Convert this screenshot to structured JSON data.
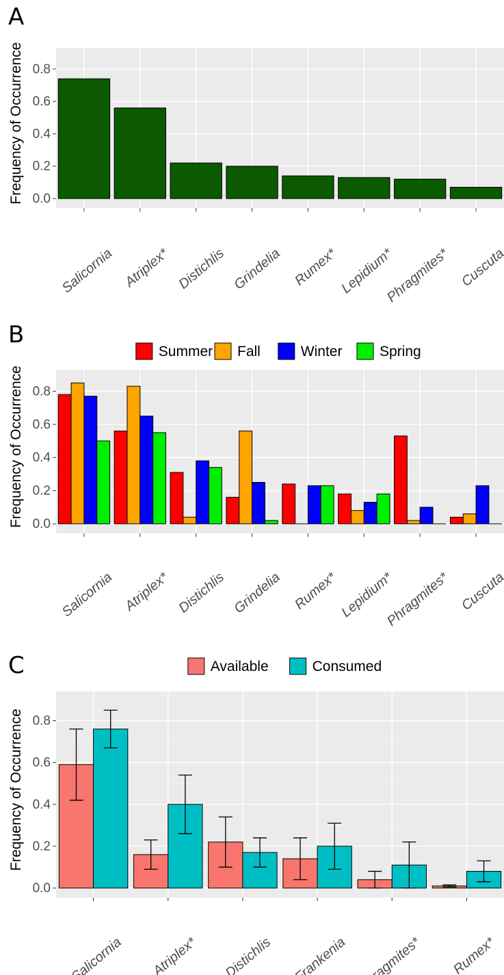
{
  "chart_data": [
    {
      "panel": "A",
      "type": "bar",
      "ylabel": "Frequency of Occurrence",
      "xlabel": "",
      "categories": [
        "Salicornia",
        "Atriplex*",
        "Distichlis",
        "Grindelia",
        "Rumex*",
        "Lepidium*",
        "Phragmites*",
        "Cuscuta"
      ],
      "series": [
        {
          "values": [
            0.74,
            0.56,
            0.22,
            0.2,
            0.14,
            0.13,
            0.12,
            0.07
          ],
          "color": "#0b5a00"
        }
      ],
      "yticks": [
        "0.0",
        "0.2",
        "0.4",
        "0.6",
        "0.8"
      ],
      "ylim": [
        0,
        0.88
      ],
      "grid": true,
      "legend": []
    },
    {
      "panel": "B",
      "type": "bar",
      "ylabel": "Frequency of Occurrence",
      "xlabel": "",
      "categories": [
        "Salicornia",
        "Atriplex*",
        "Distichlis",
        "Grindelia",
        "Rumex*",
        "Lepidium*",
        "Phragmites*",
        "Cuscuta"
      ],
      "series": [
        {
          "name": "Summer",
          "color": "#ff0000",
          "values": [
            0.78,
            0.56,
            0.31,
            0.16,
            0.24,
            0.18,
            0.53,
            0.04
          ]
        },
        {
          "name": "Fall",
          "color": "#ffa500",
          "values": [
            0.85,
            0.83,
            0.04,
            0.56,
            0.0,
            0.08,
            0.02,
            0.06
          ]
        },
        {
          "name": "Winter",
          "color": "#0000ff",
          "values": [
            0.77,
            0.65,
            0.38,
            0.25,
            0.23,
            0.13,
            0.1,
            0.23
          ]
        },
        {
          "name": "Spring",
          "color": "#00ee00",
          "values": [
            0.5,
            0.55,
            0.34,
            0.02,
            0.23,
            0.18,
            0.0,
            0.0
          ]
        }
      ],
      "yticks": [
        "0.0",
        "0.2",
        "0.4",
        "0.6",
        "0.8"
      ],
      "ylim": [
        0,
        0.88
      ],
      "grid": true,
      "legend": "top"
    },
    {
      "panel": "C",
      "type": "bar",
      "ylabel": "Frequency of Occurrence",
      "xlabel": "",
      "categories": [
        "Salicornia",
        "Atriplex*",
        "Distichlis",
        "Frankenia",
        "Phragmites*",
        "Rumex*"
      ],
      "series": [
        {
          "name": "Available",
          "color": "#f8766d",
          "values": [
            0.59,
            0.16,
            0.22,
            0.14,
            0.04,
            0.01
          ],
          "err_low": [
            0.42,
            0.09,
            0.1,
            0.04,
            0.0,
            0.005
          ],
          "err_high": [
            0.76,
            0.23,
            0.34,
            0.24,
            0.08,
            0.015
          ]
        },
        {
          "name": "Consumed",
          "color": "#00bfc4",
          "values": [
            0.76,
            0.4,
            0.17,
            0.2,
            0.11,
            0.08
          ],
          "err_low": [
            0.67,
            0.26,
            0.1,
            0.09,
            0.0,
            0.03
          ],
          "err_high": [
            0.85,
            0.54,
            0.24,
            0.31,
            0.22,
            0.13
          ]
        }
      ],
      "yticks": [
        "0.0",
        "0.2",
        "0.4",
        "0.6",
        "0.8"
      ],
      "ylim": [
        0,
        0.9
      ],
      "grid": true,
      "legend": "top"
    }
  ]
}
